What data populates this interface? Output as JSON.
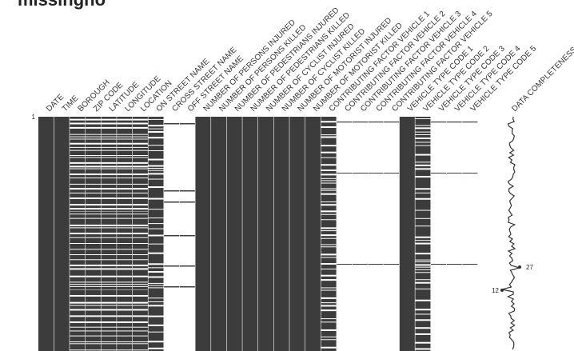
{
  "title": "missingno",
  "chart_data": {
    "type": "heatmap",
    "columns": [
      "DATE",
      "TIME",
      "BOROUGH",
      "ZIP CODE",
      "LATITUDE",
      "LONGITUDE",
      "LOCATION",
      "ON STREET NAME",
      "CROSS STREET NAME",
      "OFF STREET NAME",
      "NUMBER OF PERSONS INJURED",
      "NUMBER OF PERSONS KILLED",
      "NUMBER OF PEDESTRIANS INJURED",
      "NUMBER OF PEDESTRIANS KILLED",
      "NUMBER OF CYCLIST INJURED",
      "NUMBER OF CYCLIST KILLED",
      "NUMBER OF MOTORIST INJURED",
      "NUMBER OF MOTORIST KILLED",
      "CONTRIBUTING FACTOR VEHICLE 1",
      "CONTRIBUTING FACTOR VEHICLE 2",
      "CONTRIBUTING FACTOR VEHICLE 3",
      "CONTRIBUTING FACTOR VEHICLE 4",
      "CONTRIBUTING FACTOR VEHICLE 5",
      "VEHICLE TYPE CODE 1",
      "VEHICLE TYPE CODE 2",
      "VEHICLE TYPE CODE 3",
      "VEHICLE TYPE CODE 4",
      "VEHICLE TYPE CODE 5"
    ],
    "sparkline_label": "DATA COMPLETENESS",
    "row_start_label": "1",
    "sparkline_max_label": "27",
    "sparkline_min_label": "12",
    "sparkline_max": 27,
    "sparkline_min": 12,
    "colors": {
      "filled": "#3c3c3c",
      "empty": "#ffffff",
      "partial": "#9a9a9a"
    }
  }
}
